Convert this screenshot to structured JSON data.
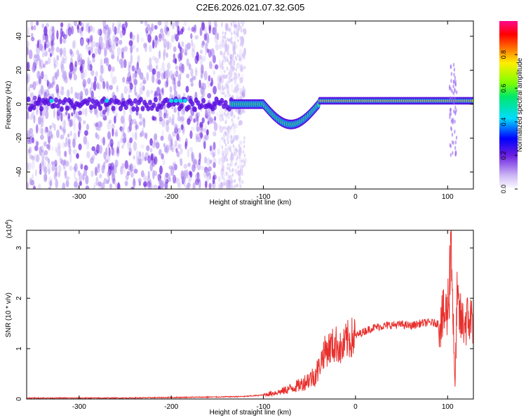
{
  "title": "C2E6.2026.021.07.32.G05",
  "colors": {
    "line": "#e8302d",
    "frame": "#000000",
    "spectrogram_low": "#8a2be2"
  },
  "chart_data": [
    {
      "type": "heatmap",
      "xlabel": "Height of straight line (km)",
      "ylabel": "Frequency (Hz)",
      "xlim": [
        -357,
        128
      ],
      "ylim": [
        -50,
        49
      ],
      "xticks": [
        -300,
        -200,
        -100,
        0,
        100
      ],
      "yticks": [
        -40,
        -20,
        0,
        20,
        40
      ],
      "colorbar": {
        "label": "Normalized spectral amplitude",
        "range": [
          0,
          1
        ],
        "ticks": [
          "0.0",
          "0.2",
          "0.4",
          "0.6",
          "0.8"
        ],
        "colormap": "rainbow (violet-blue-cyan-green-yellow-red-magenta)"
      },
      "features": {
        "noise_region_x": [
          -357,
          -130
        ],
        "central_band_freq_hz": 0,
        "dip_region_x": [
          -100,
          -40
        ],
        "dip_min_freq_hz": -12,
        "strong_band_x": [
          -40,
          128
        ],
        "strong_band_freq_hz": 2
      }
    },
    {
      "type": "line",
      "xlabel": "Height of straight line (km)",
      "ylabel": "SNR (10 * v/v)",
      "y_multiplier": "(x10",
      "y_multiplier_exp": "4",
      "y_multiplier_close": ")",
      "xlim": [
        -357,
        128
      ],
      "ylim": [
        0,
        3.35
      ],
      "xticks": [
        -300,
        -200,
        -100,
        0,
        100
      ],
      "yticks": [
        0,
        1,
        2,
        3
      ],
      "series": [
        {
          "x": [
            -357,
            -300,
            -250,
            -200,
            -150,
            -120,
            -100,
            -80,
            -60,
            -50,
            -45,
            -40,
            -35,
            -30,
            -25,
            -20,
            -15,
            -10,
            -5,
            0,
            10,
            20,
            30,
            40,
            50,
            60,
            70,
            80,
            90,
            95,
            100,
            102,
            104,
            106,
            108,
            110,
            115,
            120,
            128
          ],
          "y": [
            0.02,
            0.02,
            0.02,
            0.03,
            0.04,
            0.05,
            0.08,
            0.15,
            0.28,
            0.4,
            0.45,
            0.6,
            0.9,
            1.0,
            1.05,
            1.1,
            0.95,
            1.15,
            1.2,
            1.25,
            1.35,
            1.42,
            1.45,
            1.47,
            1.48,
            1.45,
            1.5,
            1.52,
            1.5,
            1.6,
            1.75,
            2.4,
            3.3,
            1.6,
            0.15,
            1.9,
            1.5,
            1.55,
            1.6
          ]
        }
      ]
    }
  ]
}
